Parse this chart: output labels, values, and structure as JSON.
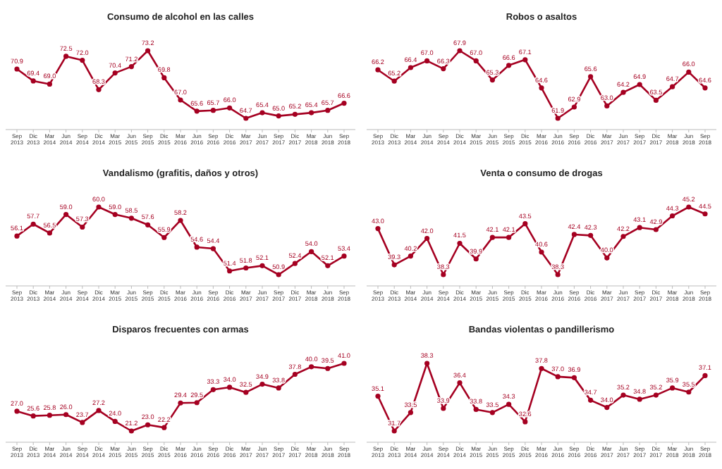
{
  "chart_data": [
    {
      "type": "line",
      "title": "Consumo de alcohol en las calles",
      "categories": [
        "Sep 2013",
        "Dic 2013",
        "Mar 2014",
        "Jun 2014",
        "Sep 2014",
        "Dic 2014",
        "Mar 2015",
        "Jun 2015",
        "Sep 2015",
        "Dic 2015",
        "Mar 2016",
        "Jun 2016",
        "Sep 2016",
        "Dic 2016",
        "Mar 2017",
        "Jun 2017",
        "Sep 2017",
        "Dic 2017",
        "Mar 2018",
        "Jun 2018",
        "Sep 2018"
      ],
      "series": [
        {
          "color": "#a50021",
          "values": [
            70.9,
            69.4,
            69.0,
            72.5,
            72.0,
            68.3,
            70.4,
            71.2,
            73.2,
            69.8,
            67.0,
            65.6,
            65.7,
            66.0,
            64.7,
            65.4,
            65.0,
            65.2,
            65.4,
            65.7,
            66.6
          ],
          "value_labels": [
            "70.9",
            "69.4",
            "69.0",
            "72.5",
            "72.0",
            "68.3",
            "70.4",
            "71.2",
            "73.2",
            "69.8",
            "67.0",
            "65.6",
            "65.7",
            "66.0",
            "64.7",
            "65.4",
            "65.0",
            "65.2",
            "65.4",
            "65.7",
            "66.6"
          ]
        }
      ],
      "marker": "circle"
    },
    {
      "type": "line",
      "title": "Robos o asaltos",
      "categories": [
        "Sep 2013",
        "Dic 2013",
        "Mar 2014",
        "Jun 2014",
        "Sep 2014",
        "Dic 2014",
        "Mar 2015",
        "Jun 2015",
        "Sep 2015",
        "Dic 2015",
        "Mar 2016",
        "Jun 2016",
        "Sep 2016",
        "Dic 2016",
        "Mar 2017",
        "Jun 2017",
        "Sep 2017",
        "Dic 2017",
        "Mar 2018",
        "Jun 2018",
        "Sep 2018"
      ],
      "series": [
        {
          "color": "#a50021",
          "values": [
            66.2,
            65.2,
            66.4,
            67.0,
            66.3,
            67.9,
            67.0,
            65.3,
            66.6,
            67.1,
            64.6,
            61.9,
            62.9,
            65.6,
            63.0,
            64.2,
            64.9,
            63.5,
            64.7,
            66.0,
            64.6
          ],
          "value_labels": [
            "66.2",
            "65.2",
            "66.4",
            "67.0",
            "66.3",
            "67.9",
            "67.0",
            "65.3",
            "66.6",
            "67.1",
            "64.6",
            "61.9",
            "62.9",
            "65.6",
            "63.0",
            "64.2",
            "64.9",
            "63.5",
            "64.7",
            "66.0",
            "64.6"
          ]
        }
      ],
      "marker": "circle"
    },
    {
      "type": "line",
      "title": "Vandalismo (grafitis, daños y otros)",
      "categories": [
        "Sep 2013",
        "Dic 2013",
        "Mar 2014",
        "Jun 2014",
        "Sep 2014",
        "Dic 2014",
        "Mar 2015",
        "Jun 2015",
        "Sep 2015",
        "Dic 2015",
        "Mar 2016",
        "Jun 2016",
        "Sep 2016",
        "Dic 2016",
        "Mar 2017",
        "Jun 2017",
        "Sep 2017",
        "Dic 2017",
        "Mar 2018",
        "Jun 2018",
        "Sep 2018"
      ],
      "series": [
        {
          "color": "#a50021",
          "values": [
            56.1,
            57.7,
            56.5,
            59.0,
            57.3,
            60.0,
            59.0,
            58.5,
            57.6,
            55.9,
            58.2,
            54.6,
            54.4,
            51.4,
            51.8,
            52.1,
            50.9,
            52.4,
            54.0,
            52.1,
            53.4
          ],
          "value_labels": [
            "56.1",
            "57.7",
            "56.5",
            "59.0",
            "57.3",
            "60.0",
            "59.0",
            "58.5",
            "57.6",
            "55.9",
            "58.2",
            "54.6",
            "54.4",
            "51.4",
            "51.8",
            "52.1",
            "50.9",
            "52.4",
            "54.0",
            "52.1",
            "53.4"
          ]
        }
      ],
      "marker": "circle"
    },
    {
      "type": "line",
      "title": "Venta o consumo de drogas",
      "categories": [
        "Sep 2013",
        "Dic 2013",
        "Mar 2014",
        "Jun 2014",
        "Sep 2014",
        "Dic 2014",
        "Mar 2015",
        "Jun 2015",
        "Sep 2015",
        "Dic 2015",
        "Mar 2016",
        "Jun 2016",
        "Sep 2016",
        "Dic 2016",
        "Mar 2017",
        "Jun 2017",
        "Sep 2017",
        "Dic 2017",
        "Mar 2018",
        "Jun 2018",
        "Sep 2018"
      ],
      "series": [
        {
          "color": "#a50021",
          "values": [
            43.0,
            39.3,
            40.2,
            42.0,
            38.3,
            41.5,
            39.9,
            42.1,
            42.1,
            43.5,
            40.6,
            38.3,
            42.4,
            42.3,
            40.0,
            42.2,
            43.1,
            42.9,
            44.3,
            45.2,
            44.5
          ],
          "value_labels": [
            "43.0",
            "39.3",
            "40.2",
            "42.0",
            "38.3",
            "41.5",
            "39.9",
            "42.1",
            "42.1",
            "43.5",
            "40.6",
            "38.3",
            "42.4",
            "42.3",
            "40.0",
            "42.2",
            "43.1",
            "42.9",
            "44.3",
            "45.2",
            "44.5"
          ]
        }
      ],
      "marker": "circle"
    },
    {
      "type": "line",
      "title": "Disparos frecuentes con armas",
      "categories": [
        "Sep 2013",
        "Dic 2013",
        "Mar 2014",
        "Jun 2014",
        "Sep 2014",
        "Dic 2014",
        "Mar 2015",
        "Jun 2015",
        "Sep 2015",
        "Dic 2015",
        "Mar 2016",
        "Jun 2016",
        "Sep 2016",
        "Dic 2016",
        "Mar 2017",
        "Jun 2017",
        "Sep 2017",
        "Dic 2017",
        "Mar 2018",
        "Jun 2018",
        "Sep 2018"
      ],
      "series": [
        {
          "color": "#a50021",
          "values": [
            27.0,
            25.6,
            25.8,
            26.0,
            23.7,
            27.2,
            24.0,
            21.2,
            23.0,
            22.2,
            29.4,
            29.5,
            33.3,
            34.0,
            32.5,
            34.9,
            33.8,
            37.8,
            40.0,
            39.5,
            41.0
          ],
          "value_labels": [
            "27.0",
            "25.6",
            "25.8",
            "26.0",
            "23.7",
            "27.2",
            "24.0",
            "21.2",
            "23.0",
            "22.2",
            "29.4",
            "29.5",
            "33.3",
            "34.0",
            "32.5",
            "34.9",
            "33.8",
            "37.8",
            "40.0",
            "39.5",
            "41.0"
          ]
        }
      ],
      "marker": "circle"
    },
    {
      "type": "line",
      "title": "Bandas violentas o pandillerismo",
      "categories": [
        "Sep 2013",
        "Dic 2013",
        "Mar 2014",
        "Jun 2014",
        "Sep 2014",
        "Dic 2014",
        "Mar 2015",
        "Jun 2015",
        "Sep 2015",
        "Dic 2015",
        "Mar 2016",
        "Jun 2016",
        "Sep 2016",
        "Dic 2016",
        "Mar 2017",
        "Jun 2017",
        "Sep 2017",
        "Dic 2017",
        "Mar 2018",
        "Jun 2018",
        "Sep 2018"
      ],
      "series": [
        {
          "color": "#a50021",
          "values": [
            35.1,
            31.7,
            33.5,
            38.3,
            33.9,
            36.4,
            33.8,
            33.5,
            34.3,
            32.6,
            37.8,
            37.0,
            36.9,
            34.7,
            34.0,
            35.2,
            34.8,
            35.2,
            35.9,
            35.5,
            37.1
          ],
          "value_labels": [
            "35.1",
            "31.7",
            "33.5",
            "38.3",
            "33.9",
            "36.4",
            "33.8",
            "33.5",
            "34.3",
            "32.6",
            "37.8",
            "37.0",
            "36.9",
            "34.7",
            "34.0",
            "35.2",
            "34.8",
            "35.2",
            "35.9",
            "35.5",
            "37.1"
          ]
        }
      ],
      "marker": "circle"
    }
  ]
}
